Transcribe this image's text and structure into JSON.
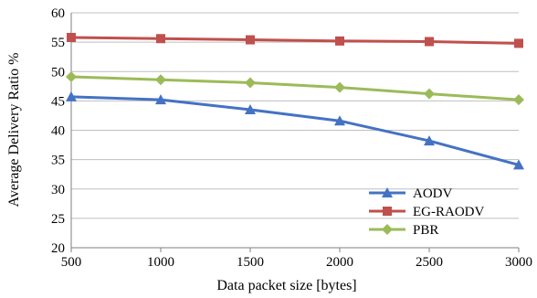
{
  "chart_data": {
    "type": "line",
    "title": "",
    "xlabel": "Data packet size [bytes]",
    "ylabel": "Average Delivery Ratio %",
    "x": [
      500,
      1000,
      1500,
      2000,
      2500,
      3000
    ],
    "xlim": [
      500,
      3000
    ],
    "ylim": [
      20,
      60
    ],
    "yticks": [
      20,
      25,
      30,
      35,
      40,
      45,
      50,
      55,
      60
    ],
    "grid": "horizontal",
    "legend": "bottom-right",
    "series": [
      {
        "name": "AODV",
        "marker": "triangle",
        "color": "#4472c4",
        "values": [
          45.7,
          45.2,
          43.5,
          41.6,
          38.2,
          34.1
        ]
      },
      {
        "name": "EG-RAODV",
        "marker": "square",
        "color": "#c0504d",
        "values": [
          55.8,
          55.6,
          55.4,
          55.2,
          55.1,
          54.8
        ]
      },
      {
        "name": "PBR",
        "marker": "diamond",
        "color": "#9bbb59",
        "values": [
          49.1,
          48.6,
          48.1,
          47.3,
          46.2,
          45.2
        ]
      }
    ]
  }
}
